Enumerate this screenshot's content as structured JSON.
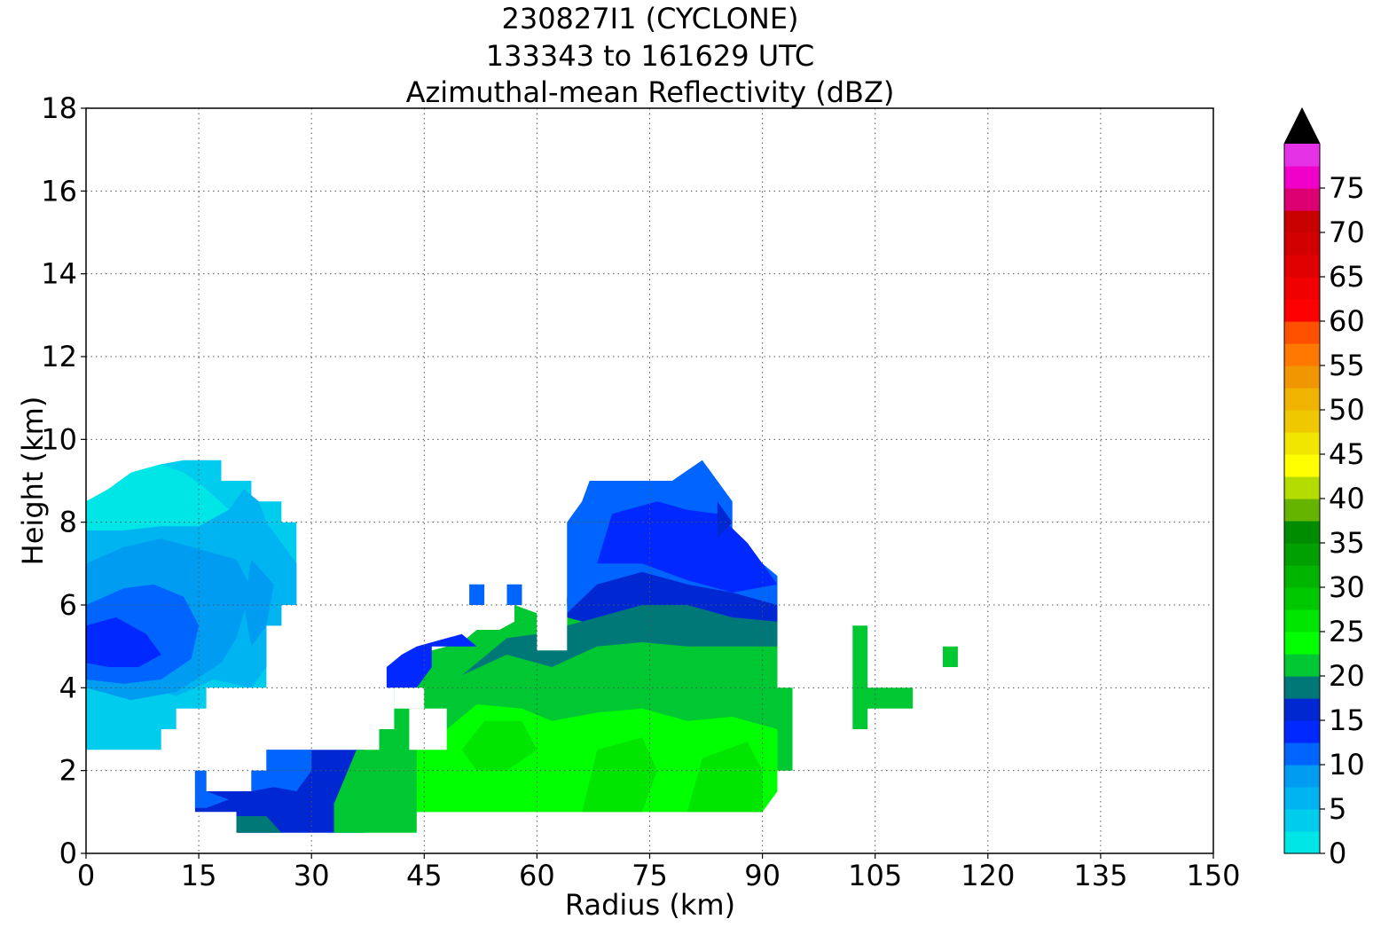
{
  "chart_data": {
    "type": "heatmap",
    "title": [
      "230827I1 (CYCLONE)",
      "133343 to 161629 UTC",
      "Azimuthal-mean Reflectivity (dBZ)"
    ],
    "xlabel": "Radius (km)",
    "ylabel": "Height (km)",
    "xlim": [
      0,
      150
    ],
    "ylim": [
      0,
      18
    ],
    "xticks": [
      0,
      15,
      30,
      45,
      60,
      75,
      90,
      105,
      120,
      135,
      150
    ],
    "yticks": [
      0,
      2,
      4,
      6,
      8,
      10,
      12,
      14,
      16,
      18
    ],
    "grid": true,
    "colorbar": {
      "label_ticks": [
        0,
        5,
        10,
        15,
        20,
        25,
        30,
        35,
        40,
        45,
        50,
        55,
        60,
        65,
        70,
        75
      ],
      "levels": [
        0,
        2.5,
        5,
        7.5,
        10,
        12.5,
        15,
        17.5,
        20,
        22.5,
        25,
        27.5,
        30,
        32.5,
        35,
        37.5,
        40,
        42.5,
        45,
        47.5,
        50,
        52.5,
        55,
        57.5,
        60,
        62.5,
        65,
        67.5,
        70,
        72.5,
        75,
        77.5,
        80
      ],
      "colors": [
        "#00e5e5",
        "#00ccee",
        "#00b4f2",
        "#009cf2",
        "#0064ff",
        "#0028ff",
        "#0028d2",
        "#007878",
        "#00c832",
        "#00ff00",
        "#00e600",
        "#00c800",
        "#00b400",
        "#00a000",
        "#008c00",
        "#64b400",
        "#b4dc00",
        "#ffff00",
        "#f0e600",
        "#f0c800",
        "#f0b400",
        "#f09600",
        "#ff7800",
        "#ff5000",
        "#ff0000",
        "#f00000",
        "#e10000",
        "#d20000",
        "#c80000",
        "#dc0073",
        "#f000c8",
        "#e632e6",
        "#c850d2",
        "#a050c8",
        "#7846a0",
        "#46285a"
      ],
      "extend": "max",
      "extend_color": "#000000"
    },
    "regions": [
      {
        "dbz": 2.5,
        "points": [
          [
            0,
            8.5
          ],
          [
            3,
            8.8
          ],
          [
            6,
            9.2
          ],
          [
            10,
            9.4
          ],
          [
            13,
            9.5
          ],
          [
            18,
            9.5
          ],
          [
            18,
            9
          ],
          [
            22,
            9
          ],
          [
            22,
            8.5
          ],
          [
            26,
            8.5
          ],
          [
            26,
            8
          ],
          [
            28,
            8
          ],
          [
            28,
            6
          ],
          [
            26,
            6
          ],
          [
            26,
            5.5
          ],
          [
            24,
            5.5
          ],
          [
            24,
            4
          ],
          [
            16,
            4
          ],
          [
            16,
            3.5
          ],
          [
            12,
            3.5
          ],
          [
            12,
            3
          ],
          [
            10,
            3
          ],
          [
            10,
            2.5
          ],
          [
            0,
            2.5
          ]
        ]
      },
      {
        "dbz": 0,
        "points": [
          [
            0,
            8.5
          ],
          [
            3,
            8.8
          ],
          [
            6,
            9.2
          ],
          [
            10,
            9.4
          ],
          [
            13,
            9.2
          ],
          [
            16,
            8.8
          ],
          [
            19,
            8.3
          ],
          [
            15,
            7.9
          ],
          [
            10,
            7.9
          ],
          [
            5,
            7.8
          ],
          [
            0,
            7.8
          ]
        ]
      },
      {
        "dbz": 5,
        "points": [
          [
            0,
            7.8
          ],
          [
            5,
            7.8
          ],
          [
            10,
            7.9
          ],
          [
            15,
            7.9
          ],
          [
            19,
            8.3
          ],
          [
            21,
            8.8
          ],
          [
            23,
            8.5
          ],
          [
            24,
            8
          ],
          [
            26,
            7.5
          ],
          [
            28,
            7
          ],
          [
            28,
            6
          ],
          [
            26,
            6
          ],
          [
            26,
            5.5
          ],
          [
            24,
            5.5
          ],
          [
            24,
            4.5
          ],
          [
            22,
            4
          ],
          [
            17,
            4.2
          ],
          [
            12,
            3.8
          ],
          [
            8,
            4
          ],
          [
            3,
            4
          ],
          [
            0,
            4.2
          ]
        ]
      },
      {
        "dbz": 7.5,
        "points": [
          [
            0,
            7
          ],
          [
            5,
            7.4
          ],
          [
            10,
            7.6
          ],
          [
            16,
            7.3
          ],
          [
            20,
            7.1
          ],
          [
            22,
            6.4
          ],
          [
            20,
            5.2
          ],
          [
            18,
            4.6
          ],
          [
            12,
            3.9
          ],
          [
            6,
            3.7
          ],
          [
            0,
            4
          ]
        ]
      },
      {
        "dbz": 7.5,
        "points": [
          [
            22,
            7.1
          ],
          [
            25,
            6.5
          ],
          [
            24,
            5.5
          ],
          [
            22,
            5
          ],
          [
            21,
            6
          ]
        ]
      },
      {
        "dbz": 10,
        "points": [
          [
            0,
            6
          ],
          [
            5,
            6.4
          ],
          [
            9,
            6.5
          ],
          [
            13,
            6.2
          ],
          [
            15,
            5.5
          ],
          [
            14,
            4.7
          ],
          [
            10,
            4.2
          ],
          [
            5,
            4.1
          ],
          [
            0,
            4.2
          ]
        ]
      },
      {
        "dbz": 12.5,
        "points": [
          [
            0,
            5.5
          ],
          [
            4,
            5.7
          ],
          [
            8,
            5.3
          ],
          [
            10,
            4.8
          ],
          [
            7,
            4.5
          ],
          [
            3,
            4.5
          ],
          [
            0,
            4.6
          ]
        ]
      },
      {
        "dbz": 15,
        "points": [
          [
            14.5,
            1
          ],
          [
            14.5,
            2
          ],
          [
            16,
            2
          ],
          [
            16,
            1.5
          ],
          [
            22,
            1.5
          ],
          [
            22,
            2
          ],
          [
            24,
            2
          ],
          [
            24,
            2.5
          ],
          [
            37,
            2.5
          ],
          [
            37,
            0.5
          ],
          [
            20,
            0.5
          ],
          [
            20,
            1
          ]
        ]
      },
      {
        "dbz": 10,
        "points": [
          [
            14.5,
            1.1
          ],
          [
            14.5,
            2
          ],
          [
            16,
            2
          ],
          [
            16,
            1.5
          ],
          [
            19,
            1.3
          ],
          [
            16,
            1.1
          ]
        ]
      },
      {
        "dbz": 10,
        "points": [
          [
            22,
            1.5
          ],
          [
            22,
            2
          ],
          [
            24,
            2
          ],
          [
            24,
            2.5
          ],
          [
            30,
            2.5
          ],
          [
            30,
            2
          ],
          [
            28,
            1.5
          ],
          [
            25,
            1.6
          ]
        ]
      },
      {
        "dbz": 17.5,
        "points": [
          [
            20,
            0.9
          ],
          [
            24,
            0.9
          ],
          [
            26,
            0.5
          ],
          [
            20,
            0.5
          ]
        ]
      },
      {
        "dbz": 20,
        "points": [
          [
            33,
            0.5
          ],
          [
            33,
            1.2
          ],
          [
            36,
            2.5
          ],
          [
            39,
            2.5
          ],
          [
            39,
            3
          ],
          [
            41,
            3
          ],
          [
            41,
            4.5
          ],
          [
            44,
            4.5
          ],
          [
            46,
            4.9
          ],
          [
            50,
            5.1
          ],
          [
            52,
            5.4
          ],
          [
            55,
            5.4
          ],
          [
            57,
            5.6
          ],
          [
            57,
            6
          ],
          [
            60,
            5.8
          ],
          [
            60,
            5
          ],
          [
            64,
            5
          ],
          [
            64,
            6
          ],
          [
            67,
            6.3
          ],
          [
            72,
            6.4
          ],
          [
            78,
            6.3
          ],
          [
            84,
            6
          ],
          [
            90,
            5.5
          ],
          [
            92,
            5.5
          ],
          [
            92,
            4
          ],
          [
            94,
            4
          ],
          [
            94,
            2
          ],
          [
            92,
            2
          ],
          [
            92,
            1.5
          ],
          [
            90,
            1.5
          ],
          [
            90,
            1
          ],
          [
            44,
            1
          ],
          [
            44,
            0.5
          ]
        ]
      },
      {
        "dbz": 12.5,
        "points": [
          [
            40,
            4.5
          ],
          [
            40,
            4
          ],
          [
            44,
            4
          ],
          [
            46,
            4.5
          ],
          [
            46,
            5
          ],
          [
            48,
            5
          ],
          [
            52,
            5
          ],
          [
            50,
            5.3
          ],
          [
            44,
            5
          ],
          [
            42,
            4.8
          ]
        ]
      },
      {
        "dbz": 15,
        "points": [
          [
            64,
            5.7
          ],
          [
            64,
            6.2
          ],
          [
            68,
            6.6
          ],
          [
            74,
            6.9
          ],
          [
            80,
            6.7
          ],
          [
            86,
            6.5
          ],
          [
            92,
            6.2
          ],
          [
            92,
            5.4
          ],
          [
            86,
            5.6
          ],
          [
            80,
            5.8
          ],
          [
            74,
            5.8
          ],
          [
            68,
            5.5
          ]
        ]
      },
      {
        "dbz": 10,
        "points": [
          [
            64,
            5.8
          ],
          [
            64,
            8
          ],
          [
            66,
            8.5
          ],
          [
            67,
            9
          ],
          [
            72,
            9
          ],
          [
            78,
            9
          ],
          [
            82,
            9.5
          ],
          [
            86,
            8.5
          ],
          [
            86,
            7.5
          ],
          [
            90,
            7
          ],
          [
            92,
            6.7
          ],
          [
            92,
            6
          ],
          [
            86,
            6.3
          ],
          [
            80,
            6.5
          ],
          [
            74,
            6.8
          ],
          [
            68,
            6.5
          ]
        ]
      },
      {
        "dbz": 12.5,
        "points": [
          [
            68,
            7
          ],
          [
            70,
            8.2
          ],
          [
            76,
            8.5
          ],
          [
            80,
            8.3
          ],
          [
            84,
            8.2
          ],
          [
            88,
            7.5
          ],
          [
            92,
            6.5
          ],
          [
            86,
            6.3
          ],
          [
            80,
            6.6
          ],
          [
            74,
            7
          ]
        ]
      },
      {
        "dbz": 17.5,
        "points": [
          [
            50,
            4.3
          ],
          [
            56,
            4.8
          ],
          [
            62,
            4.5
          ],
          [
            68,
            5
          ],
          [
            74,
            5.1
          ],
          [
            80,
            5
          ],
          [
            86,
            5
          ],
          [
            92,
            5
          ],
          [
            92,
            5.6
          ],
          [
            86,
            5.7
          ],
          [
            80,
            6
          ],
          [
            74,
            6
          ],
          [
            68,
            5.7
          ],
          [
            64,
            5.5
          ],
          [
            60,
            5.3
          ],
          [
            56,
            5.2
          ]
        ]
      },
      {
        "dbz": 22.5,
        "points": [
          [
            44,
            1
          ],
          [
            44,
            2.5
          ],
          [
            48,
            3
          ],
          [
            52,
            3.6
          ],
          [
            58,
            3.5
          ],
          [
            62,
            3.2
          ],
          [
            68,
            3.4
          ],
          [
            74,
            3.5
          ],
          [
            80,
            3.2
          ],
          [
            86,
            3.3
          ],
          [
            92,
            3
          ],
          [
            92,
            1.5
          ],
          [
            90,
            1
          ],
          [
            80,
            1
          ]
        ]
      },
      {
        "dbz": 25,
        "points": [
          [
            50,
            2.5
          ],
          [
            53,
            3.2
          ],
          [
            58,
            3.2
          ],
          [
            60,
            2.5
          ],
          [
            56,
            2
          ],
          [
            52,
            2
          ]
        ]
      },
      {
        "dbz": 25,
        "points": [
          [
            66,
            1
          ],
          [
            68,
            2.5
          ],
          [
            74,
            2.8
          ],
          [
            76,
            2
          ],
          [
            74,
            1
          ]
        ]
      },
      {
        "dbz": 25,
        "points": [
          [
            80,
            1
          ],
          [
            82,
            2.3
          ],
          [
            88,
            2.7
          ],
          [
            90,
            2
          ],
          [
            90,
            1
          ]
        ]
      },
      {
        "dbz": 10,
        "points": [
          [
            51,
            6
          ],
          [
            51,
            6.5
          ],
          [
            53,
            6.5
          ],
          [
            53,
            6
          ]
        ]
      },
      {
        "dbz": 10,
        "points": [
          [
            56,
            6
          ],
          [
            56,
            6.5
          ],
          [
            58,
            6.5
          ],
          [
            58,
            6
          ]
        ]
      },
      {
        "dbz": 20,
        "points": [
          [
            102,
            3
          ],
          [
            102,
            5.5
          ],
          [
            104,
            5.5
          ],
          [
            104,
            4
          ],
          [
            110,
            4
          ],
          [
            110,
            3.5
          ],
          [
            104,
            3.5
          ],
          [
            104,
            3
          ]
        ]
      },
      {
        "dbz": 20,
        "points": [
          [
            114,
            4.5
          ],
          [
            114,
            5
          ],
          [
            116,
            5
          ],
          [
            116,
            4.5
          ]
        ]
      },
      {
        "dbz": 15,
        "points": [
          [
            84,
            8.5
          ],
          [
            86,
            8
          ],
          [
            84,
            7.6
          ]
        ]
      }
    ],
    "blanks": [
      {
        "points": [
          [
            41,
            3.5
          ],
          [
            41,
            4
          ],
          [
            45,
            4
          ],
          [
            45,
            3.5
          ]
        ]
      },
      {
        "points": [
          [
            43,
            2.5
          ],
          [
            43,
            3.5
          ],
          [
            48,
            3.5
          ],
          [
            48,
            2.5
          ]
        ]
      },
      {
        "points": [
          [
            60,
            4.9
          ],
          [
            60,
            6
          ],
          [
            64,
            6
          ],
          [
            64,
            4.9
          ]
        ]
      }
    ]
  }
}
